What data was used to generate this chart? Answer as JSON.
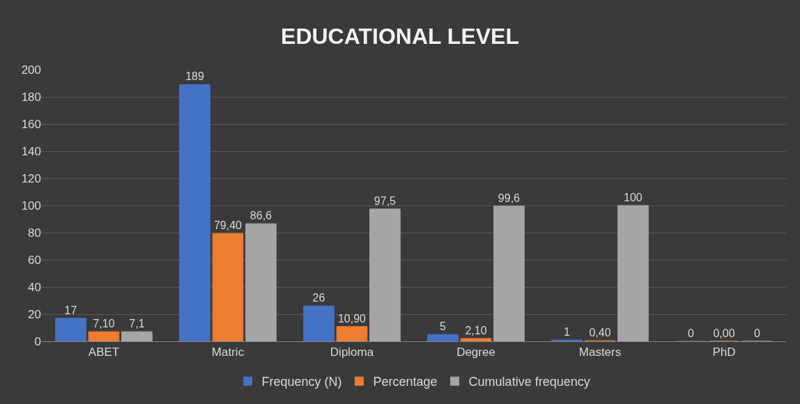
{
  "chart_data": {
    "type": "bar",
    "title": "EDUCATIONAL LEVEL",
    "categories": [
      "ABET",
      "Matric",
      "Diploma",
      "Degree",
      "Masters",
      "PhD"
    ],
    "series": [
      {
        "name": "Frequency (N)",
        "color": "#4472c4",
        "values": [
          17,
          189,
          26,
          5,
          1,
          0
        ],
        "value_labels": [
          "17",
          "189",
          "26",
          "5",
          "1",
          "0"
        ]
      },
      {
        "name": "Percentage",
        "color": "#ed7d31",
        "values": [
          7.1,
          79.4,
          10.9,
          2.1,
          0.4,
          0.0
        ],
        "value_labels": [
          "7,10",
          "79,40",
          "10,90",
          "2,10",
          "0,40",
          "0,00"
        ]
      },
      {
        "name": "Cumulative frequency",
        "color": "#a5a5a5",
        "values": [
          7.1,
          86.6,
          97.5,
          99.6,
          100,
          0
        ],
        "value_labels": [
          "7,1",
          "86,6",
          "97,5",
          "99,6",
          "100",
          "0"
        ]
      }
    ],
    "ylim": [
      0,
      200
    ],
    "yticks": [
      0,
      20,
      40,
      60,
      80,
      100,
      120,
      140,
      160,
      180,
      200
    ],
    "grid": "y",
    "legend": "bottom"
  }
}
